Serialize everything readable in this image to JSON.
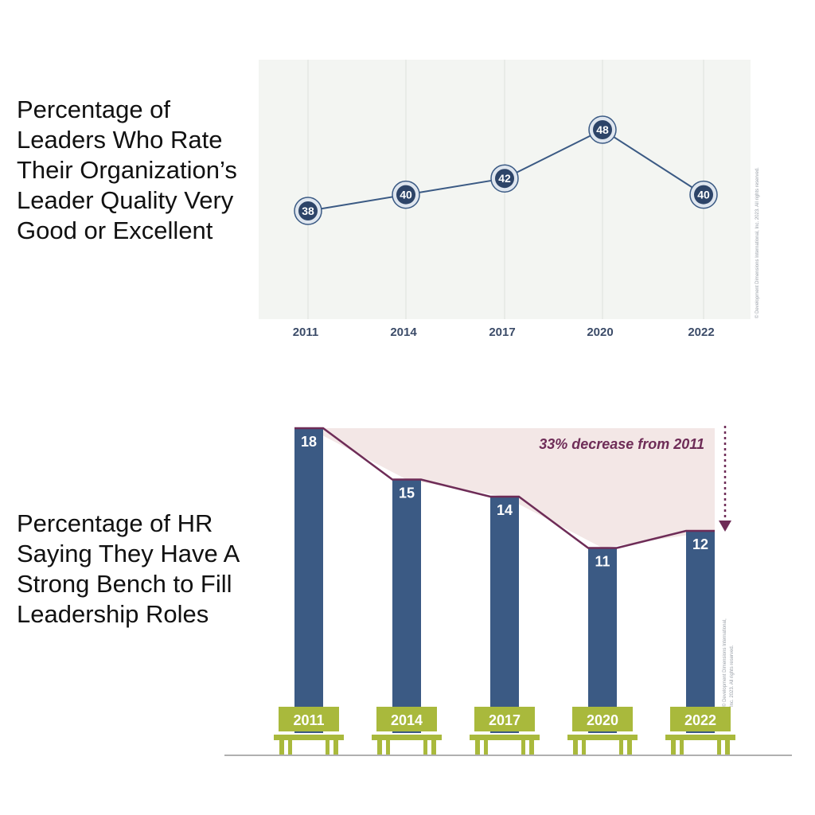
{
  "colors": {
    "navy": "#3b5a84",
    "navy_dark": "#2d4468",
    "plot_bg": "#f3f5f2",
    "gridline": "#dde1dc",
    "shade": "#f3e7e6",
    "purple": "#6e2c57",
    "bench": "#a9b93c",
    "baseline": "#b0b0b0"
  },
  "chart_data": [
    {
      "type": "line",
      "title": "Percentage of Leaders Who Rate Their Organization’s Leader Quality Very Good or Excellent",
      "categories": [
        "2011",
        "2014",
        "2017",
        "2020",
        "2022"
      ],
      "values": [
        38,
        40,
        42,
        48,
        40
      ],
      "data_labels": [
        "38",
        "40",
        "42",
        "48",
        "40"
      ],
      "grid": "vertical",
      "copyright": "© Development Dimensions International, Inc. 2023. All rights reserved."
    },
    {
      "type": "bar",
      "title": "Percentage of HR Saying They Have A Strong Bench to Fill Leadership Roles",
      "categories": [
        "2011",
        "2014",
        "2017",
        "2020",
        "2022"
      ],
      "values": [
        18,
        15,
        14,
        11,
        12
      ],
      "data_labels": [
        "18",
        "15",
        "14",
        "11",
        "12"
      ],
      "annotation": "33% decrease from 2011",
      "copyright_lines": [
        "© Development Dimensions International,",
        "Inc. 2023. All rights reserved."
      ]
    }
  ]
}
